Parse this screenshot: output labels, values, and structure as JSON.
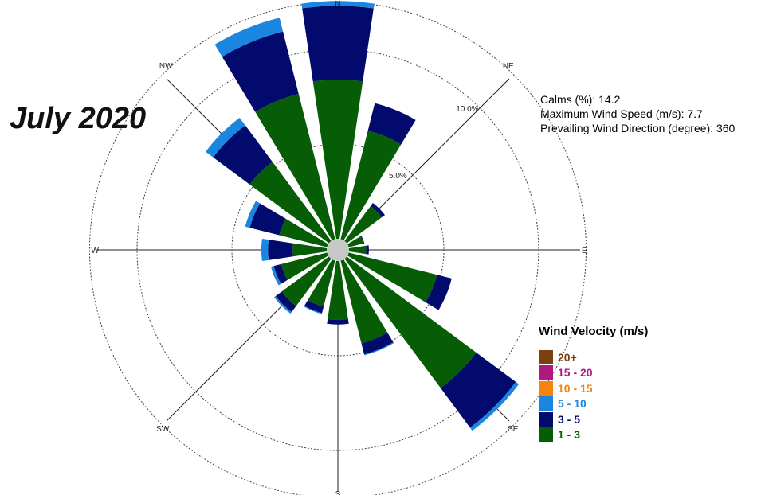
{
  "title": "July 2020",
  "stats": {
    "calms_label": "Calms (%):",
    "calms_value": "14.2",
    "max_speed_label": "Maximum Wind Speed  (m/s):",
    "max_speed_value": "7.7",
    "prevailing_label": "Prevailing  Wind Direction (degree):",
    "prevailing_value": "360"
  },
  "legend": {
    "title": "Wind Velocity (m/s)",
    "items": [
      {
        "label": "20+",
        "color": "#7b3f10"
      },
      {
        "label": "15 - 20",
        "color": "#b0177f"
      },
      {
        "label": "10 - 15",
        "color": "#f7820f"
      },
      {
        "label": "5 - 10",
        "color": "#1b86e0"
      },
      {
        "label": "3 - 5",
        "color": "#030a6e"
      },
      {
        "label": "1 - 3",
        "color": "#065d06"
      }
    ]
  },
  "chart_data": {
    "type": "wind-rose",
    "direction_labels": [
      "N",
      "NE",
      "E",
      "SE",
      "S",
      "SW",
      "W",
      "NW"
    ],
    "ring_labels": [
      "5.0%",
      "10.0%"
    ],
    "ring_values": [
      5,
      10
    ],
    "max_ring": 12.5,
    "series": [
      {
        "name": "1 - 3",
        "color": "#065d06"
      },
      {
        "name": "3 - 5",
        "color": "#030a6e"
      },
      {
        "name": "5 - 10",
        "color": "#1b86e0"
      }
    ],
    "sectors": [
      {
        "angle": 0,
        "values": [
          8.4,
          3.9,
          0.25
        ]
      },
      {
        "angle": 22.5,
        "values": [
          5.9,
          1.5,
          0.0
        ]
      },
      {
        "angle": 45,
        "values": [
          2.3,
          0.2,
          0.0
        ]
      },
      {
        "angle": 67.5,
        "values": [
          0.8,
          0.05,
          0.0
        ]
      },
      {
        "angle": 90,
        "values": [
          0.9,
          0.15,
          0.0
        ]
      },
      {
        "angle": 112.5,
        "values": [
          4.8,
          0.8,
          0.0
        ]
      },
      {
        "angle": 135,
        "values": [
          8.5,
          2.6,
          0.2
        ]
      },
      {
        "angle": 157.5,
        "values": [
          4.5,
          0.6,
          0.05
        ]
      },
      {
        "angle": 180,
        "values": [
          3.1,
          0.25,
          0.0
        ]
      },
      {
        "angle": 202.5,
        "values": [
          2.5,
          0.35,
          0.05
        ]
      },
      {
        "angle": 225,
        "values": [
          3.1,
          0.4,
          0.1
        ]
      },
      {
        "angle": 247.5,
        "values": [
          2.5,
          0.4,
          0.15
        ]
      },
      {
        "angle": 270,
        "values": [
          1.8,
          1.3,
          0.35
        ]
      },
      {
        "angle": 292.5,
        "values": [
          2.6,
          1.6,
          0.25
        ]
      },
      {
        "angle": 315,
        "values": [
          5.2,
          2.4,
          0.5
        ]
      },
      {
        "angle": 337.5,
        "values": [
          7.9,
          3.4,
          0.75
        ]
      }
    ]
  }
}
